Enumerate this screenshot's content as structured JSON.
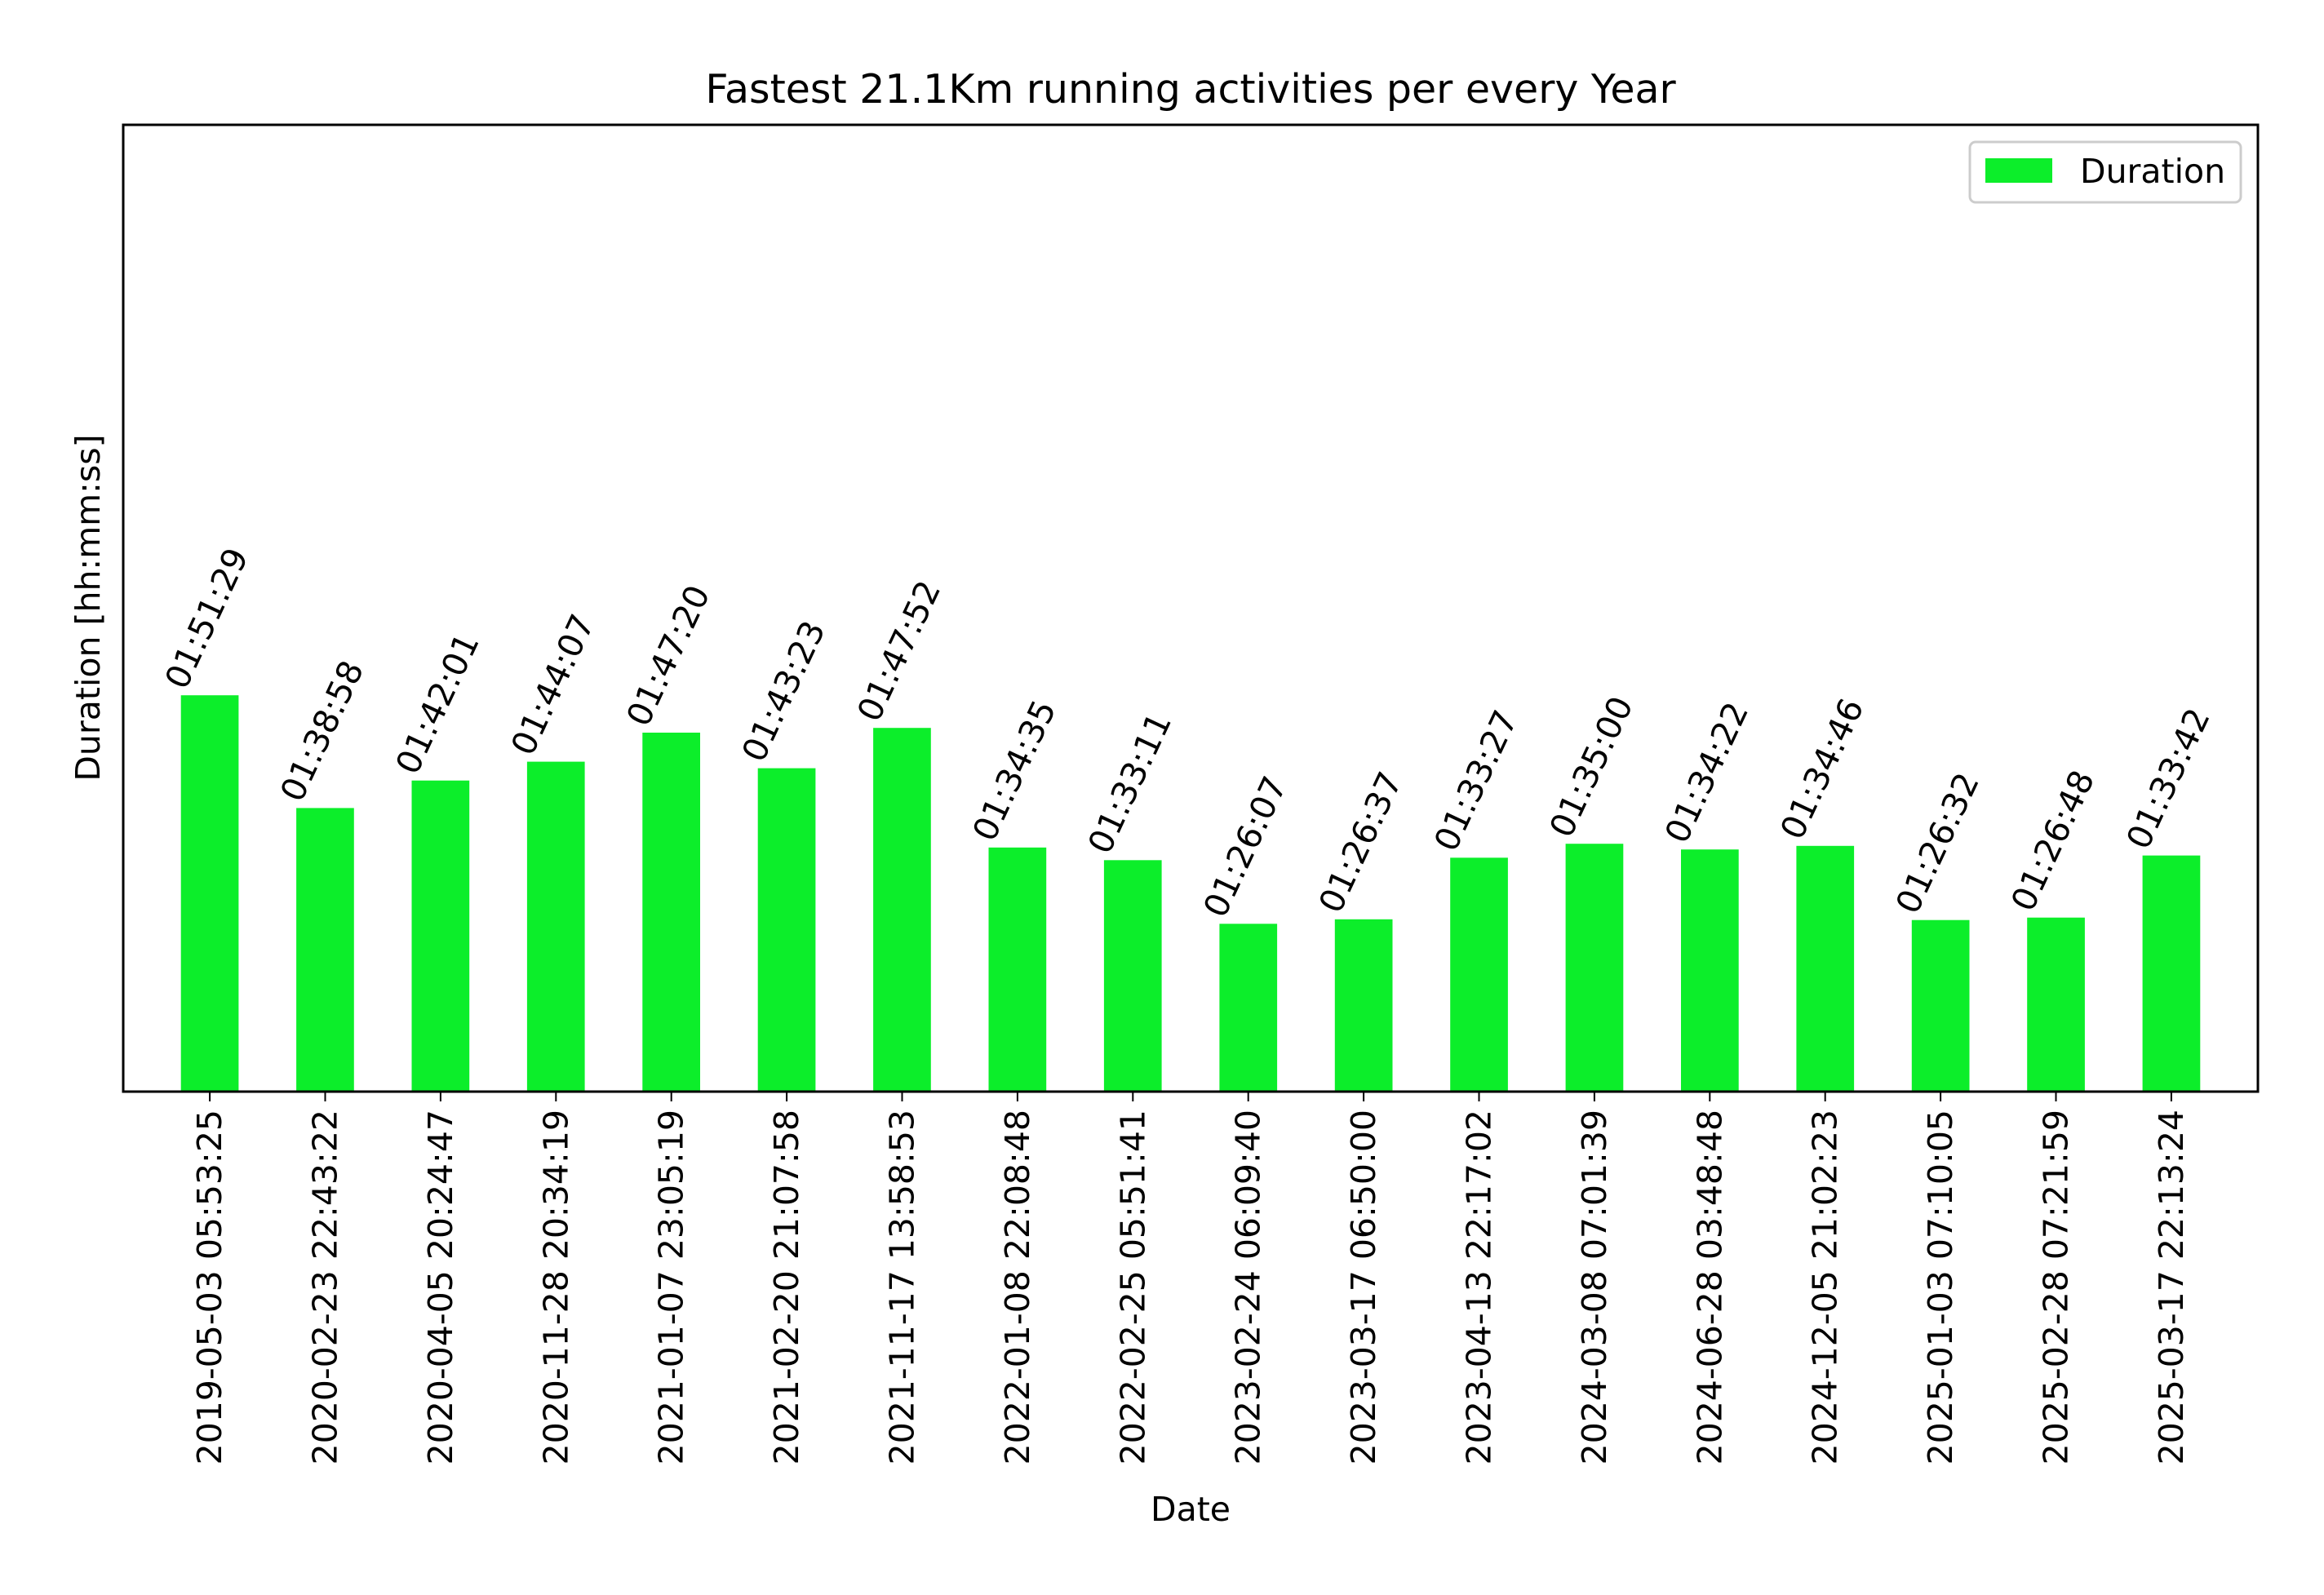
{
  "chart_data": {
    "type": "bar",
    "title": "Fastest 21.1Km running activities per every Year",
    "xlabel": "Date",
    "ylabel": "Duration [hh:mm:ss]",
    "ylim_seconds": [
      0,
      8100
    ],
    "y_ticks_shown": false,
    "legend": {
      "placement": "top-right",
      "entries": [
        "Duration"
      ]
    },
    "bar_color": "#0cee2a",
    "categories": [
      "2019-05-03 05:53:25",
      "2020-02-23 22:43:22",
      "2020-04-05 20:24:47",
      "2020-11-28 20:34:19",
      "2021-01-07 23:05:19",
      "2021-02-20 21:07:58",
      "2021-11-17 13:58:53",
      "2022-01-08 22:08:48",
      "2022-02-25 05:51:41",
      "2023-02-24 06:09:40",
      "2023-03-17 06:50:00",
      "2023-04-13 22:17:02",
      "2024-03-08 07:01:39",
      "2024-06-28 03:48:48",
      "2024-12-05 21:02:23",
      "2025-01-03 07:10:05",
      "2025-02-28 07:21:59",
      "2025-03-17 22:13:24"
    ],
    "labels": [
      "01:51:29",
      "01:38:58",
      "01:42:01",
      "01:44:07",
      "01:47:20",
      "01:43:23",
      "01:47:52",
      "01:34:35",
      "01:33:11",
      "01:26:07",
      "01:26:37",
      "01:33:27",
      "01:35:00",
      "01:34:22",
      "01:34:46",
      "01:26:32",
      "01:26:48",
      "01:33:42"
    ],
    "series": [
      {
        "name": "Duration",
        "values": [
          6689,
          5938,
          6121,
          6247,
          6440,
          6203,
          6472,
          5675,
          5591,
          5167,
          5197,
          5607,
          5700,
          5662,
          5686,
          5192,
          5208,
          5622
        ]
      }
    ]
  }
}
